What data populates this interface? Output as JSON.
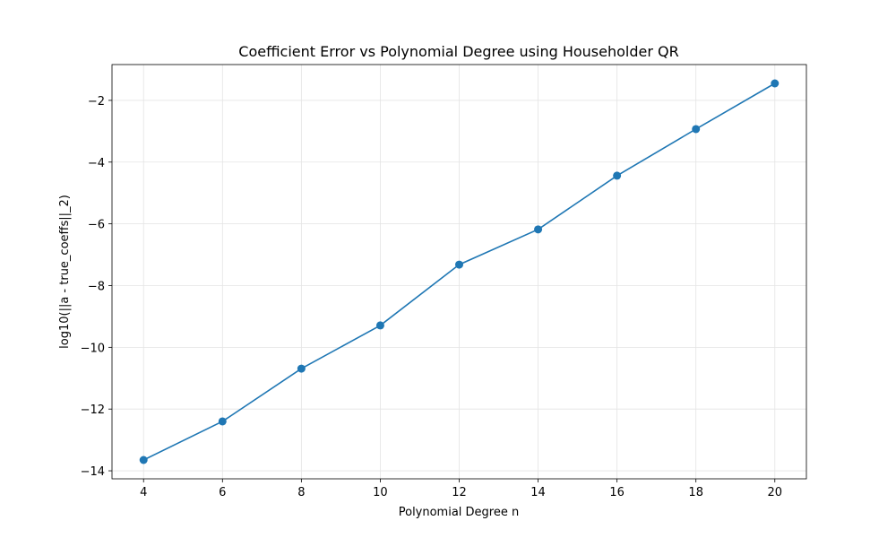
{
  "chart_data": {
    "type": "line",
    "title": "Coefficient Error vs Polynomial Degree using Householder QR",
    "x_label": "Polynomial Degree n",
    "y_label": "log10(||a - true_coeffs||_2)",
    "x": [
      4,
      6,
      8,
      10,
      12,
      14,
      16,
      18,
      20
    ],
    "series": [
      {
        "name": "error",
        "color": "#1f77b4",
        "values": [
          -13.65,
          -12.4,
          -10.69,
          -9.29,
          -7.32,
          -6.18,
          -4.44,
          -2.93,
          -1.45
        ]
      }
    ],
    "xlim": [
      3.2,
      20.8
    ],
    "ylim": [
      -14.26,
      -0.84
    ],
    "xticks": [
      4,
      6,
      8,
      10,
      12,
      14,
      16,
      18,
      20
    ],
    "yticks": [
      {
        "value": -14,
        "label": "−14"
      },
      {
        "value": -12,
        "label": "−12"
      },
      {
        "value": -10,
        "label": "−10"
      },
      {
        "value": -8,
        "label": "−8"
      },
      {
        "value": -6,
        "label": "−6"
      },
      {
        "value": -4,
        "label": "−4"
      },
      {
        "value": -2,
        "label": "−2"
      }
    ],
    "grid": true,
    "markers": true
  }
}
